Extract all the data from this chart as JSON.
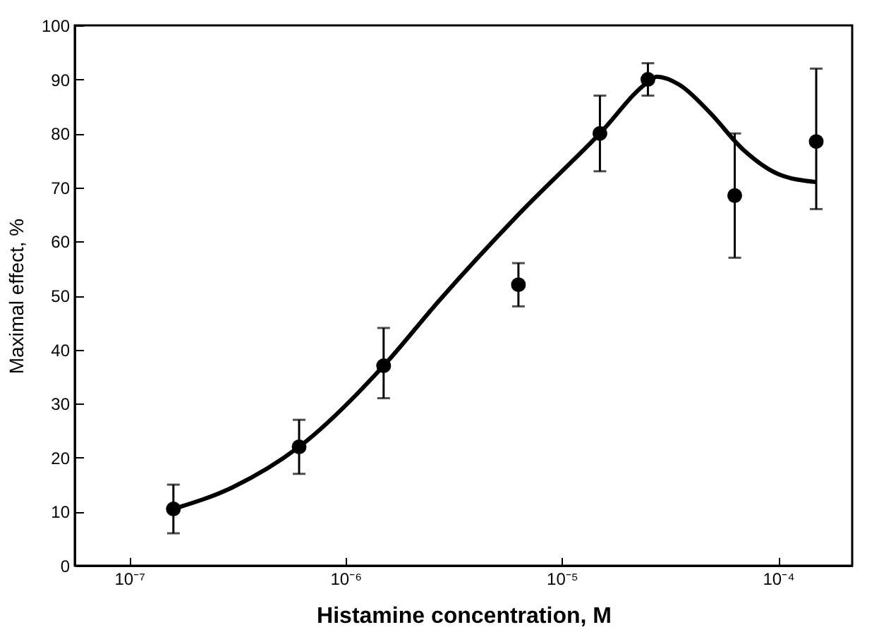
{
  "chart_data": {
    "type": "scatter",
    "xlabel": "Histamine concentration, M",
    "ylabel": "Maximal effect, %",
    "log": "x",
    "grid": false,
    "marker": "circle",
    "xlim": [
      5.6e-08,
      0.00022
    ],
    "ylim": [
      0,
      100
    ],
    "xticks": [
      {
        "value": 1e-07,
        "label": "10⁻⁷"
      },
      {
        "value": 1e-06,
        "label": "10⁻⁶"
      },
      {
        "value": 1e-05,
        "label": "10⁻⁵"
      },
      {
        "value": 0.0001,
        "label": "10⁻⁴"
      }
    ],
    "yticks": [
      0,
      10,
      20,
      30,
      40,
      50,
      60,
      70,
      80,
      90,
      100
    ],
    "series": [
      {
        "color": "#000000",
        "x": [
          1.6e-07,
          6.1e-07,
          1.5e-06,
          6.3e-06,
          1.5e-05,
          2.5e-05,
          6.3e-05,
          0.00015
        ],
        "values": [
          10.5,
          22,
          37,
          52,
          80,
          90,
          68.5,
          78.5
        ],
        "errors": [
          [
            6,
            15
          ],
          [
            17,
            27
          ],
          [
            31,
            44
          ],
          [
            48,
            56
          ],
          [
            73,
            87
          ],
          [
            87,
            93
          ],
          [
            57,
            80
          ],
          [
            66,
            92
          ]
        ]
      },
      {
        "type": "line",
        "color": "#000000",
        "line_style": "solid",
        "marker": "none",
        "x": [
          1.6e-07,
          3e-07,
          6.1e-07,
          1.5e-06,
          2.7e-06,
          6.3e-06,
          1.5e-05,
          2.5e-05,
          2.75e-05,
          3.5e-05,
          4.8e-05,
          6.9e-05,
          0.0001,
          0.00015
        ],
        "values": [
          10.5,
          14.5,
          22,
          37,
          49,
          65,
          80,
          89.5,
          90.5,
          89,
          84,
          77,
          72.5,
          71
        ]
      }
    ]
  }
}
